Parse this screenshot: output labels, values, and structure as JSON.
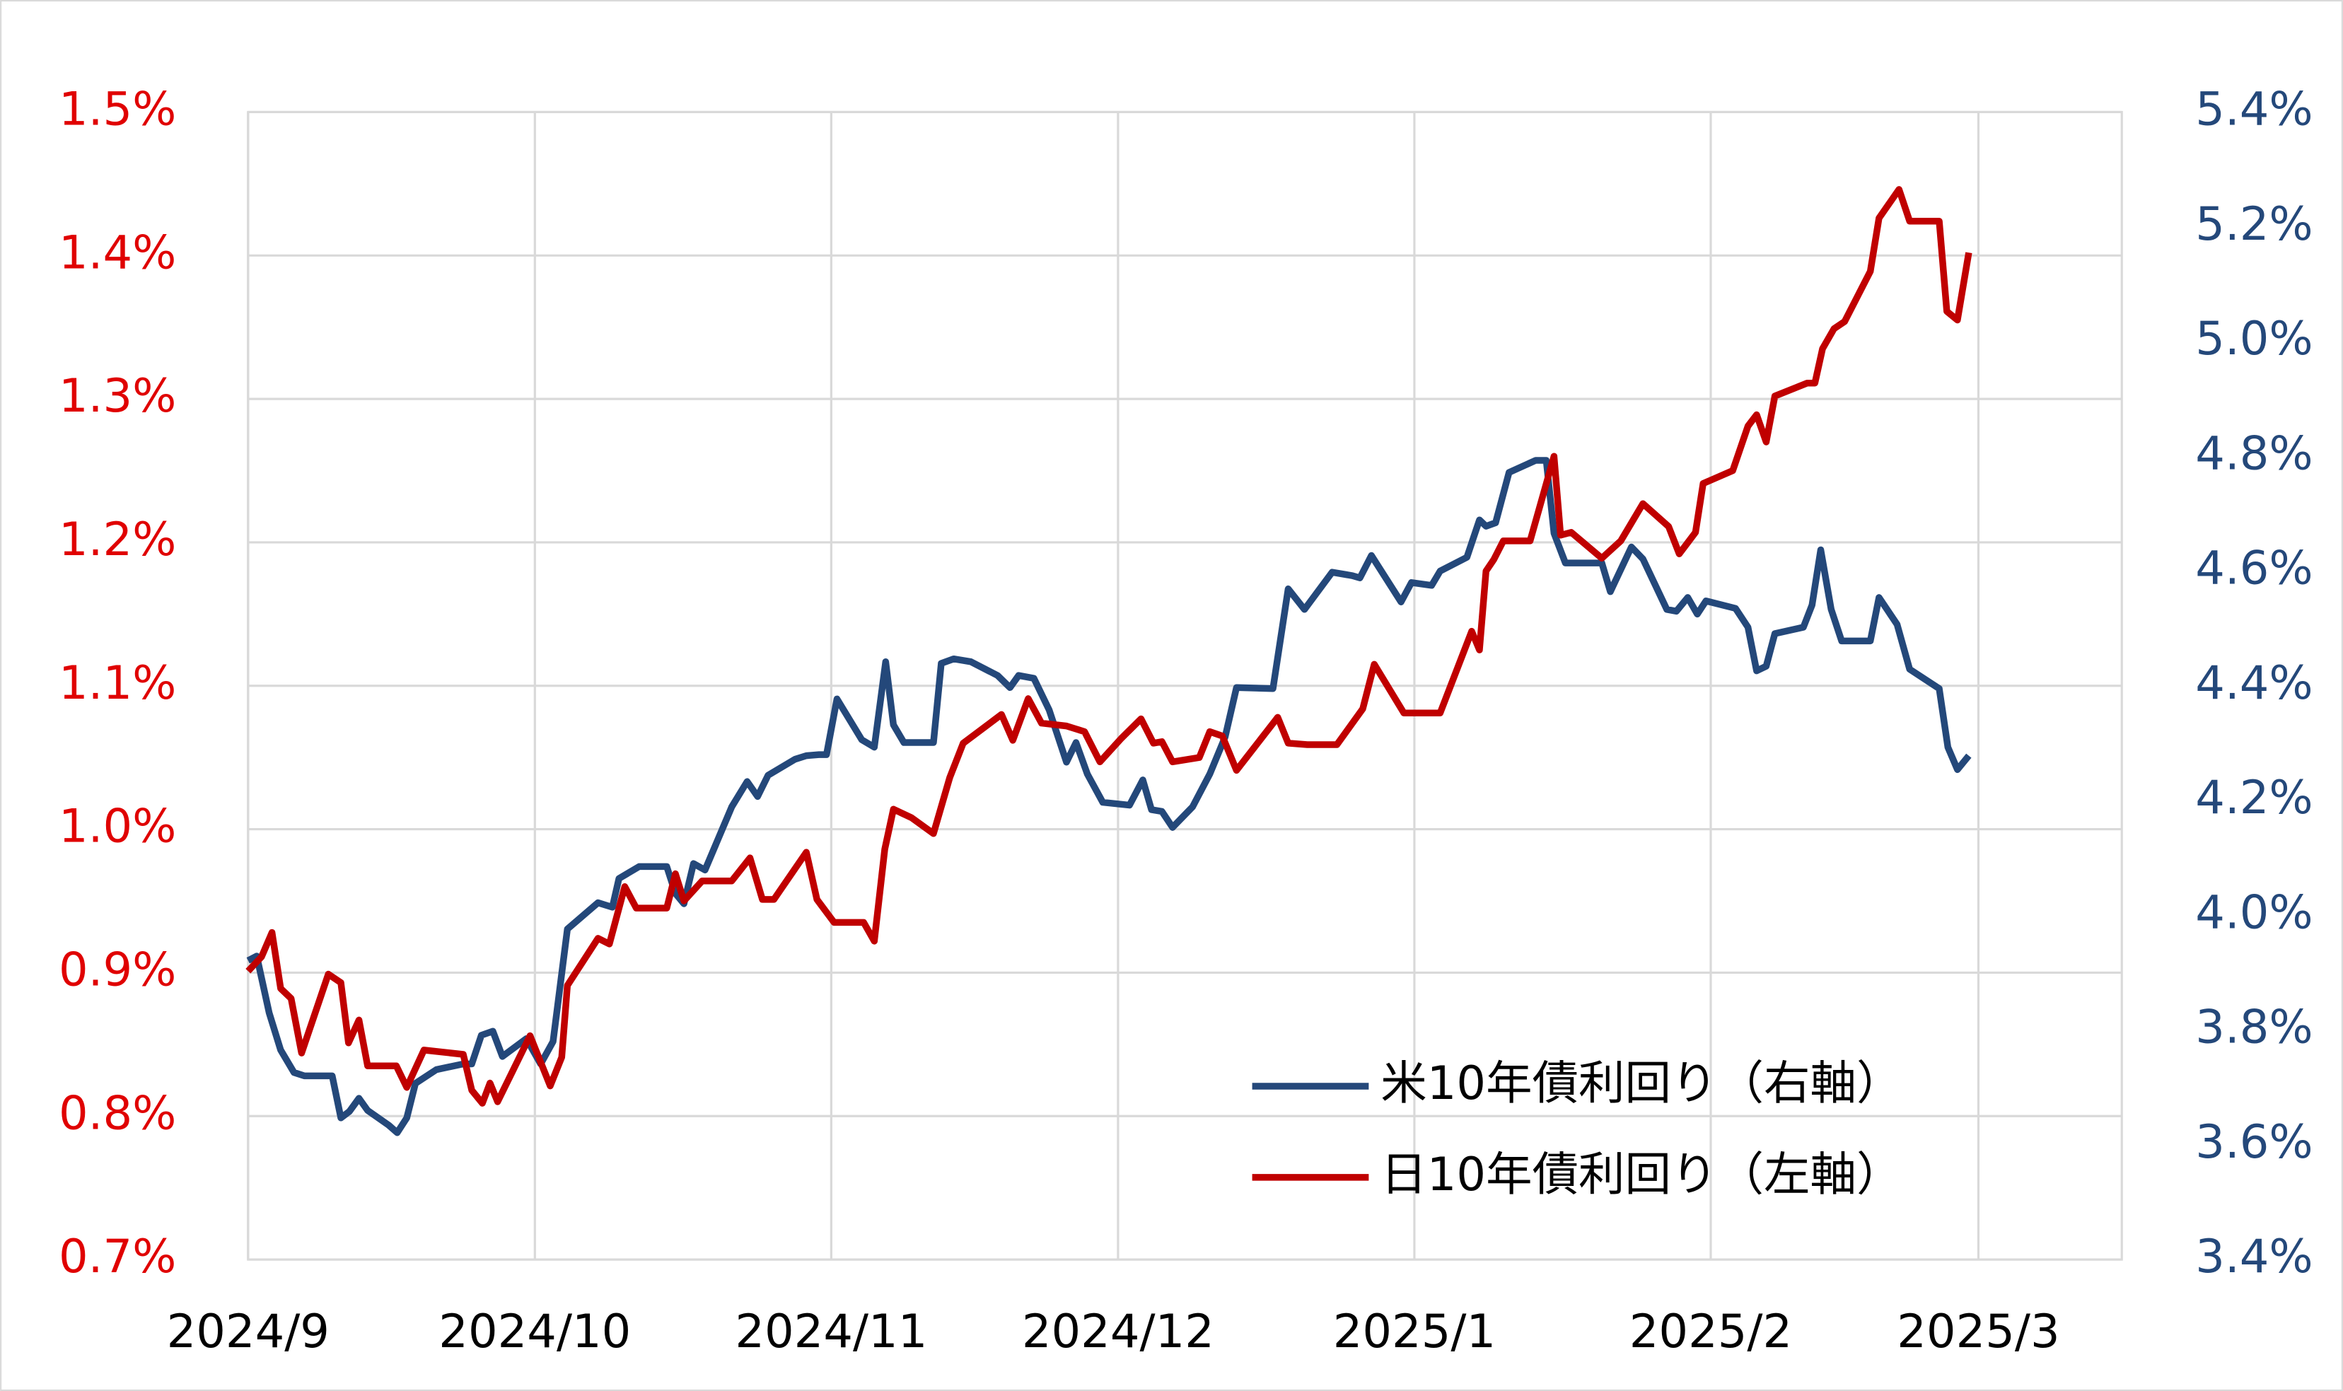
{
  "chart_data": {
    "type": "line",
    "xlim": [
      0,
      196
    ],
    "xticks": [
      {
        "value": 0,
        "label": "2024/9"
      },
      {
        "value": 30,
        "label": "2024/10"
      },
      {
        "value": 61,
        "label": "2024/11"
      },
      {
        "value": 91,
        "label": "2024/12"
      },
      {
        "value": 122,
        "label": "2025/1"
      },
      {
        "value": 153,
        "label": "2025/2"
      },
      {
        "value": 181,
        "label": "2025/3"
      }
    ],
    "ylim": [
      0.7,
      1.5
    ],
    "yticks": [
      {
        "value": 0.7,
        "label": "0.7%"
      },
      {
        "value": 0.8,
        "label": "0.8%"
      },
      {
        "value": 0.9,
        "label": "0.9%"
      },
      {
        "value": 1.0,
        "label": "1.0%"
      },
      {
        "value": 1.1,
        "label": "1.1%"
      },
      {
        "value": 1.2,
        "label": "1.2%"
      },
      {
        "value": 1.3,
        "label": "1.3%"
      },
      {
        "value": 1.4,
        "label": "1.4%"
      },
      {
        "value": 1.5,
        "label": "1.5%"
      }
    ],
    "y2lim": [
      3.4,
      5.4
    ],
    "y2ticks": [
      {
        "value": 3.4,
        "label": "3.4%"
      },
      {
        "value": 3.6,
        "label": "3.6%"
      },
      {
        "value": 3.8,
        "label": "3.8%"
      },
      {
        "value": 4.0,
        "label": "4.0%"
      },
      {
        "value": 4.2,
        "label": "4.2%"
      },
      {
        "value": 4.4,
        "label": "4.4%"
      },
      {
        "value": 4.6,
        "label": "4.6%"
      },
      {
        "value": 4.8,
        "label": "4.8%"
      },
      {
        "value": 5.0,
        "label": "5.0%"
      },
      {
        "value": 5.2,
        "label": "5.2%"
      },
      {
        "value": 5.4,
        "label": "5.4%"
      }
    ],
    "ytick_color": "#e00000",
    "y2tick_color": "#24487a",
    "grid": true,
    "legend": "lower right",
    "series": [
      {
        "name": "米10年債利回り（右軸）",
        "color": "#24487a",
        "axis": "y2",
        "x": [
          0,
          0.9,
          2.2,
          3.4,
          4.8,
          5.9,
          8.8,
          9.7,
          10.6,
          11.6,
          12.5,
          14.7,
          15.6,
          16.6,
          17.5,
          19.7,
          22.5,
          23.4,
          24.4,
          25.6,
          26.6,
          29.1,
          30.6,
          31.9,
          33.4,
          36.6,
          38.1,
          38.8,
          40.9,
          43.8,
          44.7,
          45.6,
          46.6,
          47.8,
          50.6,
          52.2,
          53.3,
          54.4,
          57.2,
          58.4,
          59.7,
          60.5,
          61.6,
          64.2,
          65.5,
          66.7,
          67.5,
          68.6,
          71.7,
          72.5,
          73.8,
          75.6,
          78.4,
          79.7,
          80.6,
          82.2,
          83.8,
          85.6,
          86.6,
          87.8,
          89.4,
          92.2,
          93.6,
          94.5,
          95.6,
          96.7,
          98.8,
          100.6,
          102.2,
          103.4,
          107.2,
          108.8,
          110.5,
          113.4,
          115.5,
          116.3,
          117.5,
          120.6,
          121.7,
          123.8,
          124.7,
          127.5,
          128.8,
          129.5,
          130.5,
          131.9,
          134.7,
          135.8,
          136.6,
          137.8,
          141.6,
          142.5,
          144.7,
          145.9,
          148.4,
          149.4,
          150.6,
          151.6,
          152.5,
          155.6,
          156.9,
          157.8,
          158.8,
          159.7,
          162.7,
          163.6,
          164.5,
          165.6,
          166.7,
          169.7,
          170.6,
          172.5,
          173.8,
          176.9,
          177.8,
          178.8,
          180
        ],
        "values": [
          3.921,
          3.929,
          3.83,
          3.765,
          3.726,
          3.72,
          3.72,
          3.647,
          3.658,
          3.681,
          3.66,
          3.634,
          3.621,
          3.647,
          3.707,
          3.731,
          3.741,
          3.741,
          3.791,
          3.798,
          3.754,
          3.785,
          3.741,
          3.78,
          3.976,
          4.022,
          4.014,
          4.064,
          4.085,
          4.085,
          4.038,
          4.02,
          4.09,
          4.079,
          4.189,
          4.233,
          4.207,
          4.244,
          4.272,
          4.278,
          4.28,
          4.28,
          4.377,
          4.306,
          4.293,
          4.442,
          4.332,
          4.301,
          4.301,
          4.439,
          4.447,
          4.442,
          4.418,
          4.397,
          4.418,
          4.413,
          4.358,
          4.267,
          4.301,
          4.246,
          4.197,
          4.192,
          4.236,
          4.184,
          4.181,
          4.153,
          4.189,
          4.246,
          4.311,
          4.397,
          4.395,
          4.569,
          4.533,
          4.598,
          4.592,
          4.588,
          4.627,
          4.546,
          4.58,
          4.575,
          4.6,
          4.624,
          4.689,
          4.678,
          4.684,
          4.772,
          4.793,
          4.793,
          4.666,
          4.614,
          4.614,
          4.564,
          4.642,
          4.621,
          4.533,
          4.53,
          4.554,
          4.525,
          4.548,
          4.535,
          4.502,
          4.426,
          4.434,
          4.491,
          4.502,
          4.541,
          4.637,
          4.533,
          4.478,
          4.478,
          4.554,
          4.507,
          4.429,
          4.395,
          4.293,
          4.254,
          4.278
        ]
      },
      {
        "name": "日10年債利回り（左軸）",
        "color": "#c00000",
        "x": [
          0,
          1.4,
          2.5,
          3.4,
          4.5,
          5.6,
          8.4,
          9.7,
          10.5,
          11.6,
          12.5,
          15.5,
          16.6,
          18.4,
          22.5,
          23.4,
          24.5,
          25.3,
          26.1,
          29.5,
          31.6,
          32.8,
          33.4,
          36.6,
          37.8,
          39.4,
          40.6,
          43.8,
          44.7,
          45.6,
          47.5,
          50.6,
          52.5,
          53.8,
          55,
          58.4,
          59.5,
          61.3,
          64.4,
          65.5,
          66.6,
          67.5,
          69.4,
          71.7,
          73.4,
          74.8,
          78.8,
          80,
          81.6,
          83,
          85.6,
          87.5,
          89.1,
          91.3,
          93.4,
          94.7,
          95.6,
          96.7,
          99.5,
          100.6,
          101.9,
          103.4,
          107.7,
          108.8,
          110.8,
          113.9,
          116.6,
          117.8,
          120.9,
          124.7,
          128,
          128.8,
          129.5,
          130.3,
          131.3,
          134.1,
          136.6,
          137.3,
          138.4,
          141.6,
          143.6,
          145.9,
          148.6,
          149.7,
          151.4,
          152.2,
          155.3,
          156.9,
          157.8,
          158.8,
          159.7,
          163.1,
          163.9,
          164.7,
          165.9,
          167,
          169.7,
          170.6,
          172.7,
          173.8,
          176.9,
          177.7,
          178.8,
          180
        ],
        "values": [
          0.901,
          0.911,
          0.928,
          0.889,
          0.882,
          0.844,
          0.899,
          0.893,
          0.851,
          0.867,
          0.835,
          0.835,
          0.82,
          0.846,
          0.843,
          0.818,
          0.809,
          0.823,
          0.81,
          0.856,
          0.821,
          0.841,
          0.891,
          0.924,
          0.92,
          0.96,
          0.945,
          0.945,
          0.969,
          0.95,
          0.964,
          0.964,
          0.98,
          0.951,
          0.951,
          0.984,
          0.951,
          0.935,
          0.935,
          0.922,
          0.986,
          1.014,
          1.008,
          0.997,
          1.036,
          1.06,
          1.08,
          1.062,
          1.091,
          1.074,
          1.072,
          1.068,
          1.047,
          1.063,
          1.077,
          1.06,
          1.061,
          1.047,
          1.05,
          1.068,
          1.065,
          1.041,
          1.078,
          1.06,
          1.059,
          1.059,
          1.084,
          1.115,
          1.081,
          1.081,
          1.138,
          1.125,
          1.18,
          1.188,
          1.201,
          1.201,
          1.26,
          1.205,
          1.207,
          1.189,
          1.201,
          1.227,
          1.211,
          1.192,
          1.207,
          1.241,
          1.25,
          1.281,
          1.289,
          1.27,
          1.302,
          1.311,
          1.311,
          1.335,
          1.349,
          1.354,
          1.389,
          1.426,
          1.446,
          1.424,
          1.424,
          1.361,
          1.355,
          1.402
        ]
      }
    ]
  }
}
